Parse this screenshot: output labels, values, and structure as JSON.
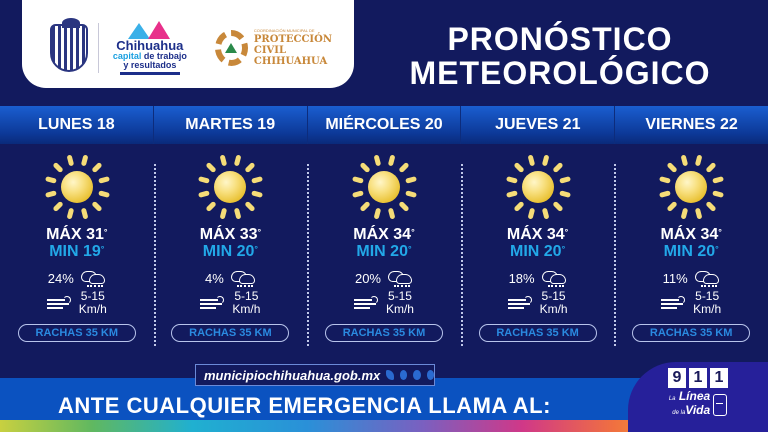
{
  "header": {
    "logo_city": "Chihuahua",
    "logo_city_tagline_1": "capital",
    "logo_city_tagline_2": " de trabajo",
    "logo_city_tagline_3": "y resultados",
    "logo_pc_small": "COORDINACIÓN MUNICIPAL DE",
    "logo_pc_line1": "PROTECCIÓN CIVIL",
    "logo_pc_line2": "CHIHUAHUA",
    "title_line1": "PRONÓSTICO",
    "title_line2": "METEOROLÓGICO"
  },
  "days": [
    {
      "label": "LUNES 18",
      "icon": "sun-icon",
      "max_label": "MÁX 31",
      "min_label": "MIN 19",
      "deg": "°",
      "rain_pct": "24%",
      "wind": "5-15",
      "wind_unit": "Km/h",
      "gusts": "RACHAS 35 KM"
    },
    {
      "label": "MARTES 19",
      "icon": "sun-icon",
      "max_label": "MÁX 33",
      "min_label": "MIN 20",
      "deg": "°",
      "rain_pct": "4%",
      "wind": "5-15",
      "wind_unit": "Km/h",
      "gusts": "RACHAS 35 KM"
    },
    {
      "label": "MIÉRCOLES 20",
      "icon": "sun-icon",
      "max_label": "MÁX 34",
      "min_label": "MIN 20",
      "deg": "°",
      "rain_pct": "20%",
      "wind": "5-15",
      "wind_unit": "Km/h",
      "gusts": "RACHAS 35 KM"
    },
    {
      "label": "JUEVES 21",
      "icon": "sun-icon",
      "max_label": "MÁX 34",
      "min_label": "MIN 20",
      "deg": "°",
      "rain_pct": "18%",
      "wind": "5-15",
      "wind_unit": "Km/h",
      "gusts": "RACHAS 35 KM"
    },
    {
      "label": "VIERNES 22",
      "icon": "sun-icon",
      "max_label": "MÁX 34",
      "min_label": "MIN 20",
      "deg": "°",
      "rain_pct": "11%",
      "wind": "5-15",
      "wind_unit": "Km/h",
      "gusts": "RACHAS 35 KM"
    }
  ],
  "footer": {
    "website": "municipiochihuahua.gob.mx",
    "social_icons": [
      "twitter-icon",
      "facebook-icon",
      "instagram-icon",
      "tiktok-icon"
    ],
    "emergency_text": "ANTE CUALQUIER EMERGENCIA LLAMA AL:",
    "digits": [
      "9",
      "1",
      "1"
    ],
    "linea_small_1": "La",
    "linea_big_1": "Línea",
    "linea_small_2": "de la",
    "linea_big_2": "Vida"
  },
  "colors": {
    "background": "#121a5e",
    "day_bar": "#1a5ed0",
    "min_temp": "#22a8e8",
    "sun": "#f5dc78",
    "footer_blue": "#0b52c0",
    "badge": "#26209a"
  }
}
